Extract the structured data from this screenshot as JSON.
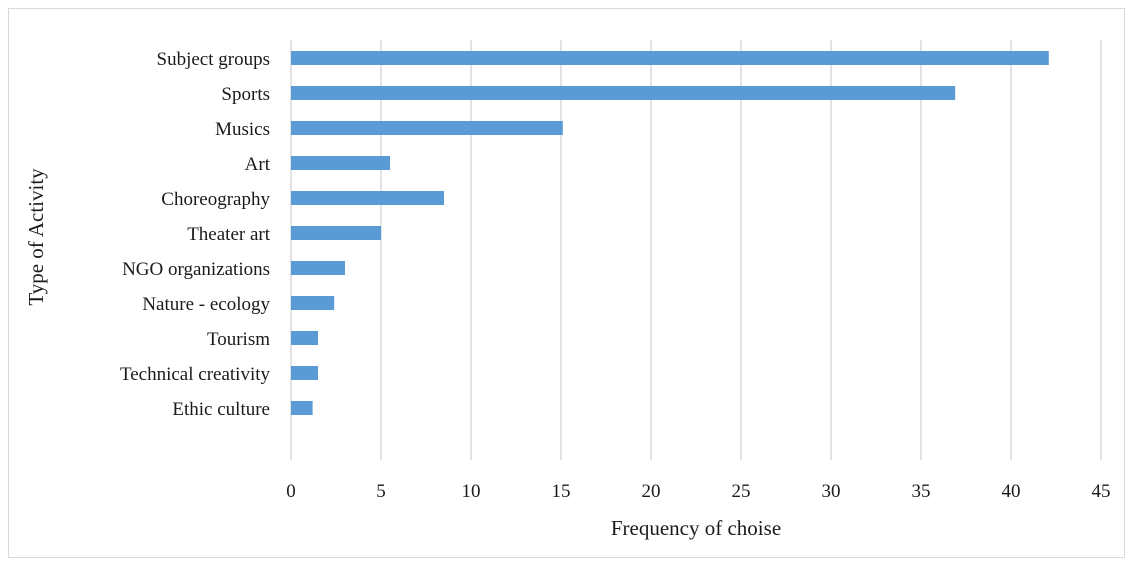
{
  "chart_data": {
    "type": "bar",
    "orientation": "horizontal",
    "categories": [
      "Subject groups",
      "Sports",
      "Musics",
      "Art",
      "Choreography",
      "Theater art",
      "NGO organizations",
      "Nature - ecology",
      "Tourism",
      "Technical creativity",
      "Ethic culture"
    ],
    "values": [
      42.1,
      36.9,
      15.1,
      5.5,
      8.5,
      5.0,
      3.0,
      2.4,
      1.5,
      1.5,
      1.2
    ],
    "xlabel": "Frequency of choise",
    "ylabel": "Type of Activity",
    "xlim": [
      0,
      45
    ],
    "xticks": [
      "0",
      "5",
      "10",
      "15",
      "20",
      "25",
      "30",
      "35",
      "40",
      "45"
    ],
    "grid": "vertical",
    "bar_color": "#5b9bd5"
  }
}
